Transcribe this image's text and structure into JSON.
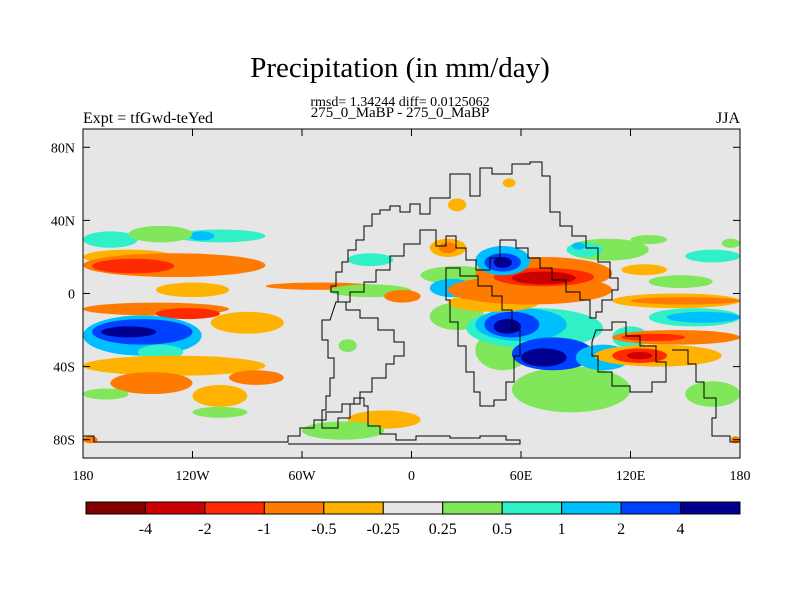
{
  "title": "Precipitation (in mm/day)",
  "stats_line": "rmsd= 1.34244 diff= 0.0125062",
  "subtitle": "275_0_MaBP - 275_0_MaBP",
  "left_label": "Expt = tfGwd-teYed",
  "right_label": "JJA",
  "chart_data": {
    "type": "heatmap",
    "projection": "cylindrical-equidistant",
    "x_ticks": [
      {
        "value": -180,
        "label": "180"
      },
      {
        "value": -120,
        "label": "120W"
      },
      {
        "value": -60,
        "label": "60W"
      },
      {
        "value": 0,
        "label": "0"
      },
      {
        "value": 60,
        "label": "60E"
      },
      {
        "value": 120,
        "label": "120E"
      },
      {
        "value": 180,
        "label": "180"
      }
    ],
    "y_ticks": [
      {
        "value": 80,
        "label": "80N"
      },
      {
        "value": 40,
        "label": "40N"
      },
      {
        "value": 0,
        "label": "0"
      },
      {
        "value": -40,
        "label": "40S"
      },
      {
        "value": -80,
        "label": "80S"
      }
    ],
    "xlim": [
      -180,
      180
    ],
    "ylim": [
      -90,
      90
    ],
    "background_color": "#e6e6e6",
    "colorbar": {
      "levels": [
        "-4",
        "-2",
        "-1",
        "-0.5",
        "-0.25",
        "0.25",
        "0.5",
        "1",
        "2",
        "4"
      ],
      "colors": [
        "#800000",
        "#cc0000",
        "#ff2a00",
        "#ff7a00",
        "#ffb200",
        "#e6e6e6",
        "#80e65a",
        "#30f0c8",
        "#00bfff",
        "#0040ff",
        "#000090"
      ]
    },
    "regions": [
      {
        "bin": 7,
        "lon": [
          -180,
          -150
        ],
        "lat": [
          25,
          34
        ]
      },
      {
        "bin": 7,
        "lon": [
          -130,
          -80
        ],
        "lat": [
          28,
          35
        ]
      },
      {
        "bin": 8,
        "lon": [
          -122,
          -108
        ],
        "lat": [
          29,
          34
        ]
      },
      {
        "bin": 6,
        "lon": [
          -155,
          -120
        ],
        "lat": [
          28,
          37
        ]
      },
      {
        "bin": 4,
        "lon": [
          -180,
          -130
        ],
        "lat": [
          16,
          24
        ]
      },
      {
        "bin": 3,
        "lon": [
          -180,
          -80
        ],
        "lat": [
          9,
          22
        ]
      },
      {
        "bin": 2,
        "lon": [
          -175,
          -130
        ],
        "lat": [
          11,
          19
        ]
      },
      {
        "bin": 3,
        "lon": [
          -80,
          -20
        ],
        "lat": [
          2,
          6
        ]
      },
      {
        "bin": 4,
        "lon": [
          -140,
          -100
        ],
        "lat": [
          -2,
          6
        ]
      },
      {
        "bin": 3,
        "lon": [
          -180,
          -100
        ],
        "lat": [
          -12,
          -5
        ]
      },
      {
        "bin": 2,
        "lon": [
          -140,
          -105
        ],
        "lat": [
          -14,
          -8
        ]
      },
      {
        "bin": 4,
        "lon": [
          -110,
          -70
        ],
        "lat": [
          -22,
          -10
        ]
      },
      {
        "bin": 8,
        "lon": [
          -180,
          -115
        ],
        "lat": [
          -34,
          -12
        ]
      },
      {
        "bin": 9,
        "lon": [
          -175,
          -120
        ],
        "lat": [
          -28,
          -14
        ]
      },
      {
        "bin": 10,
        "lon": [
          -170,
          -140
        ],
        "lat": [
          -24,
          -18
        ]
      },
      {
        "bin": 7,
        "lon": [
          -150,
          -125
        ],
        "lat": [
          -36,
          -28
        ]
      },
      {
        "bin": 4,
        "lon": [
          -180,
          -80
        ],
        "lat": [
          -45,
          -34
        ]
      },
      {
        "bin": 3,
        "lon": [
          -165,
          -120
        ],
        "lat": [
          -55,
          -43
        ]
      },
      {
        "bin": 3,
        "lon": [
          -100,
          -70
        ],
        "lat": [
          -50,
          -42
        ]
      },
      {
        "bin": 4,
        "lon": [
          -120,
          -90
        ],
        "lat": [
          -62,
          -50
        ]
      },
      {
        "bin": 6,
        "lon": [
          -180,
          -155
        ],
        "lat": [
          -58,
          -52
        ]
      },
      {
        "bin": 6,
        "lon": [
          -120,
          -90
        ],
        "lat": [
          -68,
          -62
        ]
      },
      {
        "bin": 4,
        "lon": [
          -35,
          5
        ],
        "lat": [
          -74,
          -64
        ]
      },
      {
        "bin": 6,
        "lon": [
          -60,
          -15
        ],
        "lat": [
          -80,
          -70
        ]
      },
      {
        "bin": 3,
        "lon": [
          -180,
          -172
        ],
        "lat": [
          -82,
          -78
        ]
      },
      {
        "bin": 3,
        "lon": [
          175,
          180
        ],
        "lat": [
          -82,
          -78
        ]
      },
      {
        "bin": 7,
        "lon": [
          -35,
          -10
        ],
        "lat": [
          15,
          22
        ]
      },
      {
        "bin": 6,
        "lon": [
          -45,
          0
        ],
        "lat": [
          -2,
          5
        ]
      },
      {
        "bin": 6,
        "lon": [
          -40,
          -30
        ],
        "lat": [
          -32,
          -25
        ]
      },
      {
        "bin": 3,
        "lon": [
          -15,
          5
        ],
        "lat": [
          -5,
          2
        ]
      },
      {
        "bin": 4,
        "lon": [
          10,
          30
        ],
        "lat": [
          20,
          30
        ]
      },
      {
        "bin": 3,
        "lon": [
          15,
          25
        ],
        "lat": [
          22,
          28
        ]
      },
      {
        "bin": 4,
        "lon": [
          30,
          60
        ],
        "lat": [
          -4,
          6
        ]
      },
      {
        "bin": 6,
        "lon": [
          5,
          45
        ],
        "lat": [
          5,
          15
        ]
      },
      {
        "bin": 8,
        "lon": [
          10,
          35
        ],
        "lat": [
          -2,
          8
        ]
      },
      {
        "bin": 6,
        "lon": [
          10,
          40
        ],
        "lat": [
          -20,
          -5
        ]
      },
      {
        "bin": 6,
        "lon": [
          35,
          65
        ],
        "lat": [
          -42,
          -20
        ]
      },
      {
        "bin": 6,
        "lon": [
          55,
          120
        ],
        "lat": [
          -65,
          -40
        ]
      },
      {
        "bin": 6,
        "lon": [
          150,
          180
        ],
        "lat": [
          -62,
          -48
        ]
      },
      {
        "bin": 7,
        "lon": [
          30,
          105
        ],
        "lat": [
          -30,
          -8
        ]
      },
      {
        "bin": 8,
        "lon": [
          35,
          85
        ],
        "lat": [
          -26,
          -8
        ]
      },
      {
        "bin": 9,
        "lon": [
          40,
          70
        ],
        "lat": [
          -24,
          -10
        ]
      },
      {
        "bin": 10,
        "lon": [
          45,
          60
        ],
        "lat": [
          -22,
          -14
        ]
      },
      {
        "bin": 9,
        "lon": [
          55,
          100
        ],
        "lat": [
          -42,
          -24
        ]
      },
      {
        "bin": 10,
        "lon": [
          60,
          85
        ],
        "lat": [
          -40,
          -30
        ]
      },
      {
        "bin": 8,
        "lon": [
          90,
          120
        ],
        "lat": [
          -42,
          -28
        ]
      },
      {
        "bin": 7,
        "lon": [
          110,
          130
        ],
        "lat": [
          -30,
          -18
        ]
      },
      {
        "bin": 7,
        "lon": [
          130,
          180
        ],
        "lat": [
          -18,
          -8
        ]
      },
      {
        "bin": 8,
        "lon": [
          140,
          180
        ],
        "lat": [
          -16,
          -10
        ]
      },
      {
        "bin": 4,
        "lon": [
          110,
          180
        ],
        "lat": [
          -8,
          0
        ]
      },
      {
        "bin": 3,
        "lon": [
          120,
          180
        ],
        "lat": [
          -6,
          -2
        ]
      },
      {
        "bin": 3,
        "lon": [
          110,
          180
        ],
        "lat": [
          -28,
          -20
        ]
      },
      {
        "bin": 2,
        "lon": [
          115,
          150
        ],
        "lat": [
          -26,
          -22
        ]
      },
      {
        "bin": 4,
        "lon": [
          100,
          170
        ],
        "lat": [
          -40,
          -28
        ]
      },
      {
        "bin": 2,
        "lon": [
          110,
          140
        ],
        "lat": [
          -38,
          -30
        ]
      },
      {
        "bin": 1,
        "lon": [
          118,
          132
        ],
        "lat": [
          -36,
          -32
        ]
      },
      {
        "bin": 4,
        "lon": [
          20,
          70
        ],
        "lat": [
          -10,
          0
        ]
      },
      {
        "bin": 3,
        "lon": [
          20,
          110
        ],
        "lat": [
          -6,
          10
        ]
      },
      {
        "bin": 3,
        "lon": [
          35,
          110
        ],
        "lat": [
          2,
          20
        ]
      },
      {
        "bin": 2,
        "lon": [
          45,
          100
        ],
        "lat": [
          4,
          14
        ]
      },
      {
        "bin": 1,
        "lon": [
          55,
          90
        ],
        "lat": [
          5,
          12
        ]
      },
      {
        "bin": 8,
        "lon": [
          35,
          65
        ],
        "lat": [
          10,
          26
        ]
      },
      {
        "bin": 9,
        "lon": [
          40,
          60
        ],
        "lat": [
          12,
          22
        ]
      },
      {
        "bin": 10,
        "lon": [
          45,
          55
        ],
        "lat": [
          14,
          20
        ]
      },
      {
        "bin": 6,
        "lon": [
          85,
          130
        ],
        "lat": [
          18,
          30
        ]
      },
      {
        "bin": 7,
        "lon": [
          85,
          105
        ],
        "lat": [
          20,
          28
        ]
      },
      {
        "bin": 8,
        "lon": [
          88,
          95
        ],
        "lat": [
          24,
          28
        ]
      },
      {
        "bin": 6,
        "lon": [
          120,
          140
        ],
        "lat": [
          27,
          32
        ]
      },
      {
        "bin": 7,
        "lon": [
          150,
          180
        ],
        "lat": [
          17,
          24
        ]
      },
      {
        "bin": 6,
        "lon": [
          170,
          180
        ],
        "lat": [
          25,
          30
        ]
      },
      {
        "bin": 6,
        "lon": [
          130,
          165
        ],
        "lat": [
          3,
          10
        ]
      },
      {
        "bin": 4,
        "lon": [
          115,
          140
        ],
        "lat": [
          10,
          16
        ]
      },
      {
        "bin": 4,
        "lon": [
          20,
          30
        ],
        "lat": [
          45,
          52
        ]
      },
      {
        "bin": 4,
        "lon": [
          50,
          57
        ],
        "lat": [
          58,
          63
        ]
      }
    ]
  }
}
